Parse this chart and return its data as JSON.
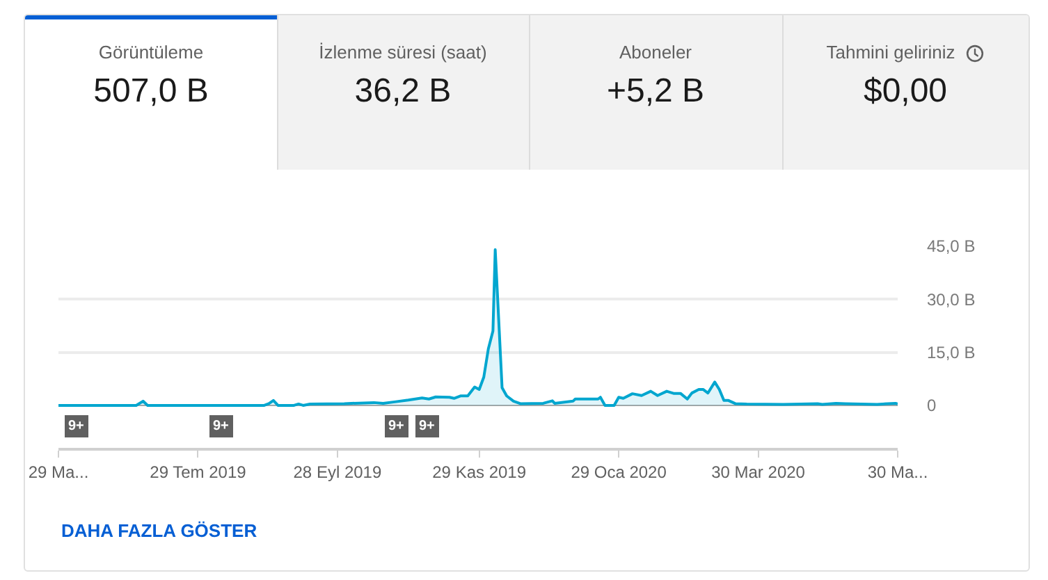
{
  "chart_data": [
    {
      "type": "other",
      "categories": [
        "Görüntüleme",
        "İzlenme süresi (saat)",
        "Aboneler",
        "Tahmini geliriniz"
      ],
      "value_labels": [
        "507,0 B",
        "36,2 B",
        "+5,2 B",
        "$0,00"
      ]
    },
    {
      "type": "area",
      "color": "#00a6cf",
      "x": [
        "2019-05-29",
        "2019-06-28",
        "2019-07-02",
        "2019-07-05",
        "2019-07-07",
        "2019-07-28",
        "2019-08-27",
        "2019-08-29",
        "2019-08-31",
        "2019-09-02",
        "2019-09-09",
        "2019-09-11",
        "2019-09-13",
        "2019-09-16",
        "2019-10-01",
        "2019-10-14",
        "2019-10-18",
        "2019-10-23",
        "2019-10-29",
        "2019-11-04",
        "2019-11-07",
        "2019-11-10",
        "2019-11-16",
        "2019-11-18",
        "2019-11-21",
        "2019-11-24",
        "2019-11-27",
        "2019-11-29",
        "2019-12-01",
        "2019-12-03",
        "2019-12-05",
        "2019-12-06",
        "2019-12-09",
        "2019-12-11",
        "2019-12-14",
        "2019-12-17",
        "2019-12-27",
        "2019-12-31",
        "2020-01-01",
        "2020-01-09",
        "2020-01-10",
        "2020-01-20",
        "2020-01-21",
        "2020-01-23",
        "2020-01-27",
        "2020-01-29",
        "2020-01-31",
        "2020-02-04",
        "2020-02-08",
        "2020-02-12",
        "2020-02-15",
        "2020-02-19",
        "2020-02-22",
        "2020-02-25",
        "2020-02-28",
        "2020-03-01",
        "2020-03-04",
        "2020-03-06",
        "2020-03-08",
        "2020-03-11",
        "2020-03-13",
        "2020-03-15",
        "2020-03-17",
        "2020-03-20",
        "2020-03-25",
        "2020-04-10",
        "2020-04-25",
        "2020-04-27",
        "2020-05-03",
        "2020-05-07",
        "2020-05-21",
        "2020-05-29",
        "2020-05-30"
      ],
      "values": [
        0,
        0,
        0,
        1.2,
        0,
        0,
        0,
        0.5,
        1.4,
        0,
        0,
        0.4,
        0,
        0.4,
        0.5,
        0.8,
        0.6,
        1,
        1.5,
        2.1,
        1.8,
        2.4,
        2.3,
        2,
        2.7,
        2.7,
        5.2,
        4.5,
        8,
        16,
        21,
        44,
        5,
        2.7,
        1.2,
        0.5,
        0.6,
        1.3,
        0.6,
        1.2,
        1.8,
        1.8,
        2.3,
        0,
        0,
        2.3,
        2,
        3.3,
        2.8,
        4,
        2.8,
        4,
        3.4,
        3.4,
        1.8,
        3.5,
        4.5,
        4.5,
        3.5,
        6.6,
        4.5,
        1.4,
        1.4,
        0.5,
        0.4,
        0.3,
        0.5,
        0.3,
        0.6,
        0.5,
        0.3,
        0.6,
        0.4
      ],
      "xlim": [
        "2019-05-29",
        "2020-05-30"
      ],
      "xticks": [
        {
          "value": "2019-05-29",
          "label": "29 Ma..."
        },
        {
          "value": "2019-07-29",
          "label": "29 Tem 2019"
        },
        {
          "value": "2019-09-28",
          "label": "28 Eyl 2019"
        },
        {
          "value": "2019-11-29",
          "label": "29 Kas 2019"
        },
        {
          "value": "2020-01-29",
          "label": "29 Oca 2020"
        },
        {
          "value": "2020-03-30",
          "label": "30 Mar 2020"
        },
        {
          "value": "2020-05-30",
          "label": "30 Ma..."
        }
      ],
      "ylim": [
        -12,
        45
      ],
      "yticks": [
        0,
        {
          "value": 15,
          "label": "15,0 B"
        },
        {
          "value": 30,
          "label": "30,0 B"
        },
        {
          "value": 45,
          "label": "45,0 B"
        }
      ],
      "grid": "y",
      "annotations": [
        {
          "text": "9+",
          "x": "2019-06-06",
          "y": -6
        },
        {
          "text": "9+",
          "x": "2019-08-08",
          "y": -6
        },
        {
          "text": "9+",
          "x": "2019-10-24",
          "y": -6
        },
        {
          "text": "9+",
          "x": "2019-11-06",
          "y": -6
        },
        "DAHA FAZLA GÖSTER"
      ]
    }
  ]
}
